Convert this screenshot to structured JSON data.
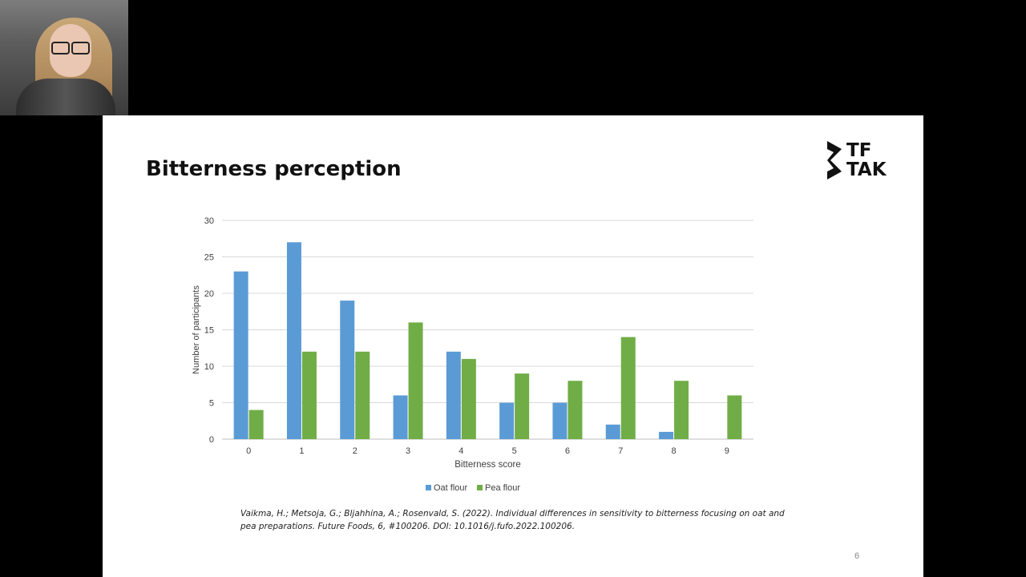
{
  "slide": {
    "title": "Bitterness perception",
    "logo": {
      "line1": "TF",
      "line2": "TAK"
    },
    "citation": "Vaikma, H.; Metsoja, G.; Bljahhina, A.; Rosenvald, S. (2022). Individual differences in sensitivity to bitterness focusing on oat and pea preparations. Future Foods, 6,  #100206. DOI: 10.1016/j.fufo.2022.100206.",
    "page_number": "6"
  },
  "colors": {
    "oat": "#5B9BD5",
    "pea": "#70AD47",
    "grid": "#d9d9d9",
    "text": "#404040"
  },
  "chart_data": {
    "type": "bar",
    "title": "",
    "xlabel": "Bitterness score",
    "ylabel": "Number of participants",
    "ylim": [
      0,
      30
    ],
    "yticks": [
      0,
      5,
      10,
      15,
      20,
      25,
      30
    ],
    "categories": [
      "0",
      "1",
      "2",
      "3",
      "4",
      "5",
      "6",
      "7",
      "8",
      "9"
    ],
    "series": [
      {
        "name": "Oat flour",
        "values": [
          23,
          27,
          19,
          6,
          12,
          5,
          5,
          2,
          1,
          0
        ]
      },
      {
        "name": "Pea flour",
        "values": [
          4,
          12,
          12,
          16,
          11,
          9,
          8,
          14,
          8,
          6
        ]
      }
    ],
    "grid": true,
    "legend": "bottom"
  }
}
